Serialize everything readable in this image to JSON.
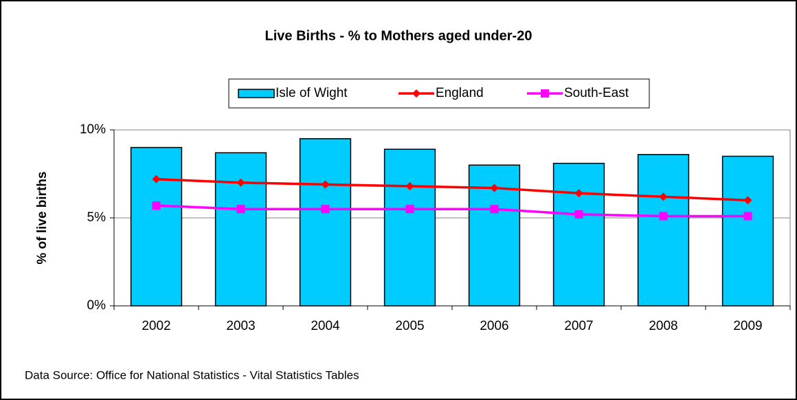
{
  "chart_data": {
    "type": "bar",
    "title": "Live Births - % to Mothers aged under-20",
    "y_label": "% of live births",
    "source": "Data Source: Office for National Statistics - Vital Statistics Tables",
    "categories": [
      "2002",
      "2003",
      "2004",
      "2005",
      "2006",
      "2007",
      "2008",
      "2009"
    ],
    "series": [
      {
        "name": "Isle of Wight",
        "type": "bar",
        "color": "#00ccff",
        "values": [
          9.0,
          8.7,
          9.5,
          8.9,
          8.0,
          8.1,
          8.6,
          8.5
        ]
      },
      {
        "name": "England",
        "type": "line",
        "marker": "diamond",
        "color": "#ff0000",
        "values": [
          7.2,
          7.0,
          6.9,
          6.8,
          6.7,
          6.4,
          6.2,
          6.0
        ]
      },
      {
        "name": "South-East",
        "type": "line",
        "marker": "square",
        "color": "#ff00ff",
        "values": [
          5.7,
          5.5,
          5.5,
          5.5,
          5.5,
          5.2,
          5.1,
          5.1
        ]
      }
    ],
    "ylim": [
      0,
      10
    ],
    "yticks": [
      {
        "value": 0,
        "label": "0%"
      },
      {
        "value": 5,
        "label": "5%"
      },
      {
        "value": 10,
        "label": "10%"
      }
    ],
    "grid": true,
    "legend": "top"
  }
}
